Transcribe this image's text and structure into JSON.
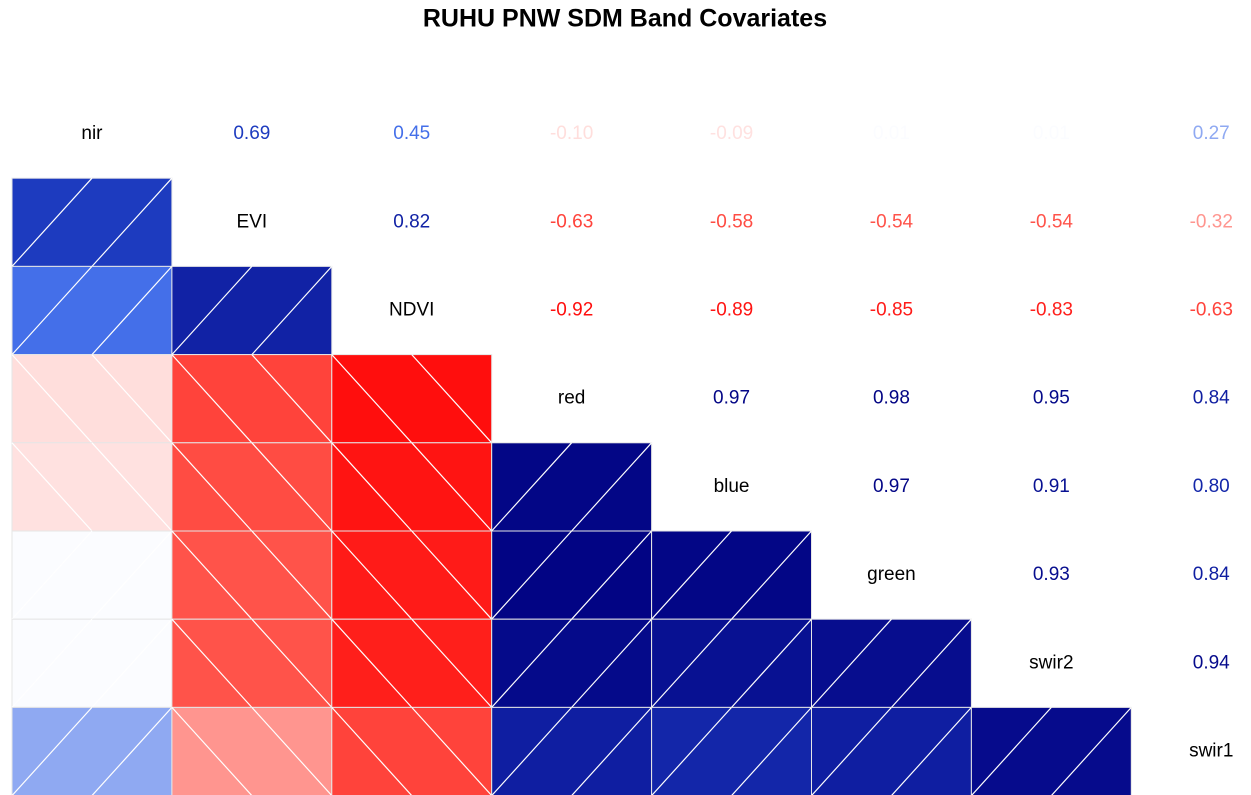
{
  "chart_data": {
    "type": "corrgram",
    "title": "RUHU PNW SDM Band Covariates",
    "variables": [
      "nir",
      "EVI",
      "NDVI",
      "red",
      "blue",
      "green",
      "swir2",
      "swir1"
    ],
    "values": [
      [
        0.69,
        0.45,
        -0.1,
        -0.09,
        0.01,
        0.01,
        0.27
      ],
      [
        0.82,
        -0.63,
        -0.58,
        -0.54,
        -0.54,
        -0.32
      ],
      [
        -0.92,
        -0.89,
        -0.85,
        -0.83,
        -0.63
      ],
      [
        0.97,
        0.98,
        0.95,
        0.84
      ],
      [
        0.97,
        0.91,
        0.8
      ],
      [
        0.93,
        0.84
      ],
      [
        0.94
      ]
    ],
    "value_labels": [
      [
        "0.69",
        "0.45",
        "-0.10",
        "-0.09",
        "0.01",
        "0.01",
        "0.27"
      ],
      [
        "0.82",
        "-0.63",
        "-0.58",
        "-0.54",
        "-0.54",
        "-0.32"
      ],
      [
        "-0.92",
        "-0.89",
        "-0.85",
        "-0.83",
        "-0.63"
      ],
      [
        "0.97",
        "0.98",
        "0.95",
        "0.84"
      ],
      [
        "0.97",
        "0.91",
        "0.80"
      ],
      [
        "0.93",
        "0.84"
      ],
      [
        "0.94"
      ]
    ],
    "positive_colors": [
      "#ffffff",
      "#2f5fe6",
      "#000080"
    ],
    "negative_colors": [
      "#ffffff",
      "#ff5a50",
      "#ff0000"
    ]
  }
}
